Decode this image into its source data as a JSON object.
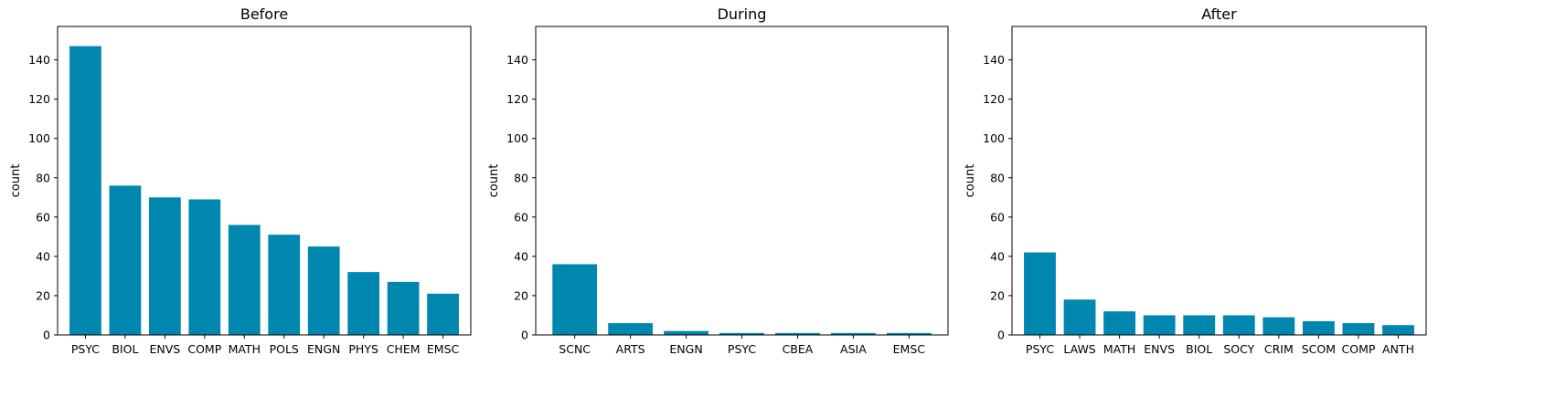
{
  "chart_data": [
    {
      "type": "bar",
      "title": "Before",
      "xlabel": "",
      "ylabel": "count",
      "ylim": [
        0,
        157
      ],
      "yticks": [
        0,
        20,
        40,
        60,
        80,
        100,
        120,
        140
      ],
      "grid": false,
      "color": "#0087af",
      "categories": [
        "PSYC",
        "BIOL",
        "ENVS",
        "COMP",
        "MATH",
        "POLS",
        "ENGN",
        "PHYS",
        "CHEM",
        "EMSC"
      ],
      "values": [
        147,
        76,
        70,
        69,
        56,
        51,
        45,
        32,
        27,
        21
      ]
    },
    {
      "type": "bar",
      "title": "During",
      "xlabel": "",
      "ylabel": "count",
      "ylim": [
        0,
        157
      ],
      "yticks": [
        0,
        20,
        40,
        60,
        80,
        100,
        120,
        140
      ],
      "grid": false,
      "color": "#0087af",
      "categories": [
        "SCNC",
        "ARTS",
        "ENGN",
        "PSYC",
        "CBEA",
        "ASIA",
        "EMSC"
      ],
      "values": [
        36,
        6,
        2,
        1,
        1,
        1,
        1
      ]
    },
    {
      "type": "bar",
      "title": "After",
      "xlabel": "",
      "ylabel": "count",
      "ylim": [
        0,
        157
      ],
      "yticks": [
        0,
        20,
        40,
        60,
        80,
        100,
        120,
        140
      ],
      "grid": false,
      "color": "#0087af",
      "categories": [
        "PSYC",
        "LAWS",
        "MATH",
        "ENVS",
        "BIOL",
        "SOCY",
        "CRIM",
        "SCOM",
        "COMP",
        "ANTH"
      ],
      "values": [
        42,
        18,
        12,
        10,
        10,
        10,
        9,
        7,
        6,
        5
      ]
    }
  ]
}
